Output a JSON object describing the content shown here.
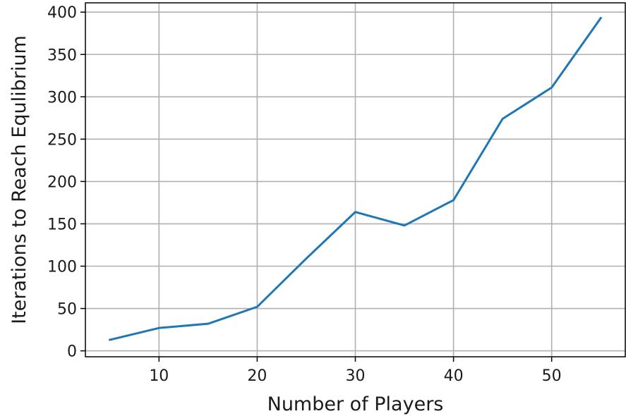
{
  "chart_data": {
    "type": "line",
    "title": "",
    "xlabel": "Number of Players",
    "ylabel": "Iterations to Reach Equlibrium",
    "x": [
      5,
      10,
      15,
      20,
      25,
      30,
      35,
      40,
      45,
      50,
      55
    ],
    "series": [
      {
        "values": [
          13,
          27,
          32,
          52,
          109,
          164,
          148,
          178,
          274,
          311,
          393
        ],
        "color": "#1f77b4"
      }
    ],
    "xlim": [
      2.5,
      57.5
    ],
    "ylim": [
      -7,
      411
    ],
    "xticks": [
      10,
      20,
      30,
      40,
      50
    ],
    "yticks": [
      0,
      50,
      100,
      150,
      200,
      250,
      300,
      350,
      400
    ],
    "grid": true,
    "legend": "none"
  }
}
